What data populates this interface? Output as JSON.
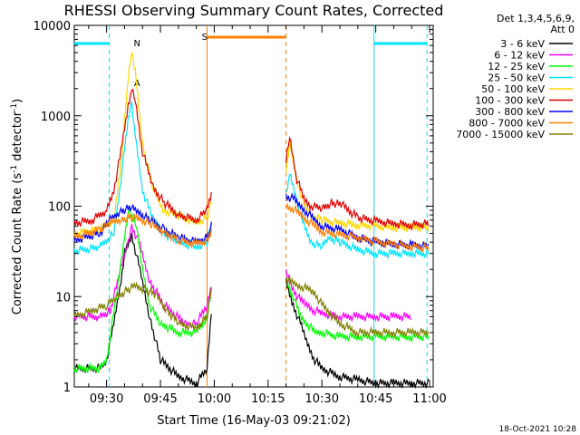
{
  "chart_data": {
    "type": "line",
    "title": "RHESSI Observing Summary Count Rates, Corrected",
    "xlabel": "Start Time (16-May-03 09:21:02)",
    "ylabel_main": "Corrected Count Rate (s",
    "ylabel_unit": "-1",
    "ylabel_mid": " detector",
    "ylabel_end": ")",
    "x_ticks": [
      "09:30",
      "09:45",
      "10:00",
      "10:15",
      "10:30",
      "10:45",
      "11:00"
    ],
    "x_tick_minutes": [
      30,
      45,
      60,
      75,
      90,
      105,
      120
    ],
    "xlim_minutes": [
      21,
      121
    ],
    "y_scale": "log",
    "ylim": [
      1,
      10000
    ],
    "y_ticks": [
      "1",
      "10",
      "100",
      "1000",
      "10000"
    ],
    "detectors": "Det 1,3,4,5,6,9,",
    "attenuator": "Att 0",
    "legend_position": "top-right",
    "footer_date": "18-Oct-2021 10:28",
    "markers": [
      {
        "label": "N",
        "color": "#00e5ff"
      },
      {
        "label": "S",
        "color": "#ff7f00"
      }
    ],
    "night_intervals": [
      {
        "start": 21,
        "end": 30.7,
        "color": "#00e5ff"
      },
      {
        "start": 104.5,
        "end": 119.3,
        "color": "#00e5ff"
      }
    ],
    "saa_interval": {
      "start": 58,
      "end": 80,
      "color": "#ff7f00"
    },
    "series": [
      {
        "name": "3 - 6 keV",
        "color": "#000000",
        "x": [
          21,
          28,
          30,
          32,
          34,
          35,
          37,
          39,
          42,
          45,
          50,
          55,
          58,
          59.5,
          80,
          82,
          84,
          86,
          88,
          90,
          95,
          100,
          105,
          110,
          115,
          120
        ],
        "y": [
          1.6,
          1.6,
          2,
          5,
          15,
          30,
          48,
          22,
          6,
          2,
          1.3,
          1.1,
          1.6,
          10,
          14,
          8,
          5,
          3,
          2,
          1.6,
          1.3,
          1.2,
          1.1,
          1.1,
          1.1,
          1.1
        ]
      },
      {
        "name": "6 - 12 keV",
        "color": "#ff00ff",
        "x": [
          21,
          28,
          31,
          34,
          37,
          39,
          42,
          46,
          52,
          55,
          58,
          59.5,
          80,
          82,
          84,
          86,
          88,
          90,
          95,
          100,
          105,
          110,
          115
        ],
        "y": [
          6,
          6,
          7,
          20,
          60,
          40,
          15,
          8,
          5,
          5,
          8,
          15,
          18,
          12,
          9,
          8,
          7,
          6.5,
          6,
          6,
          6,
          6,
          6
        ]
      },
      {
        "name": "12 - 25 keV",
        "color": "#00ff00",
        "x": [
          21,
          28,
          30,
          33,
          36,
          38,
          40,
          42,
          45,
          50,
          55,
          58,
          59.5,
          80,
          82,
          84,
          86,
          88,
          90,
          95,
          100,
          105,
          110,
          115,
          120
        ],
        "y": [
          1.6,
          1.6,
          2,
          12,
          90,
          70,
          20,
          8,
          5,
          4,
          4,
          6,
          15,
          16,
          10,
          6,
          5,
          4,
          4,
          3.6,
          3.6,
          3.6,
          3.6,
          3.6,
          3.6
        ]
      },
      {
        "name": "25 - 50 keV",
        "color": "#00e5ff",
        "x": [
          21,
          28,
          32,
          34,
          36,
          37,
          38,
          40,
          43,
          46,
          50,
          55,
          58,
          59.5,
          80,
          81,
          83,
          85,
          87,
          90,
          92,
          95,
          100,
          105,
          110,
          115,
          120
        ],
        "y": [
          32,
          35,
          50,
          200,
          900,
          1400,
          600,
          150,
          70,
          50,
          40,
          35,
          40,
          65,
          140,
          230,
          120,
          60,
          40,
          35,
          45,
          40,
          33,
          30,
          30,
          30,
          30
        ]
      },
      {
        "name": "50 - 100 keV",
        "color": "#ffd700",
        "x": [
          21,
          28,
          32,
          34,
          36,
          37,
          38,
          40,
          43,
          46,
          50,
          55,
          58,
          59.5,
          80,
          81,
          83,
          85,
          87,
          90,
          95,
          100,
          105,
          110,
          115,
          120
        ],
        "y": [
          50,
          55,
          70,
          300,
          2500,
          5500,
          3000,
          500,
          150,
          90,
          80,
          65,
          75,
          120,
          250,
          500,
          200,
          100,
          80,
          70,
          65,
          62,
          60,
          58,
          58,
          58
        ]
      },
      {
        "name": "100 - 300 keV",
        "color": "#e00000",
        "x": [
          21,
          26,
          30,
          32,
          34,
          36,
          37,
          38,
          40,
          43,
          46,
          50,
          55,
          58,
          59.5,
          80,
          81,
          83,
          85,
          87,
          90,
          93,
          96,
          100,
          105,
          110,
          115,
          120
        ],
        "y": [
          65,
          70,
          90,
          150,
          400,
          1300,
          1900,
          1500,
          400,
          160,
          110,
          80,
          70,
          90,
          150,
          300,
          600,
          200,
          120,
          100,
          95,
          110,
          100,
          75,
          68,
          64,
          62,
          64
        ]
      },
      {
        "name": "300 - 800 keV",
        "color": "#0000ff",
        "x": [
          21,
          28,
          31,
          34,
          37,
          39,
          42,
          46,
          50,
          55,
          58,
          59.5,
          80,
          82,
          84,
          86,
          88,
          90,
          95,
          100,
          105,
          110,
          115,
          120
        ],
        "y": [
          42,
          50,
          70,
          90,
          95,
          85,
          70,
          55,
          45,
          40,
          45,
          65,
          130,
          120,
          100,
          85,
          70,
          60,
          55,
          45,
          40,
          38,
          37,
          36
        ]
      },
      {
        "name": "800 - 7000 keV",
        "color": "#ff7f00",
        "x": [
          21,
          28,
          31,
          34,
          37,
          39,
          42,
          46,
          50,
          55,
          58,
          59.5,
          80,
          82,
          84,
          86,
          88,
          90,
          95,
          100,
          105,
          110,
          115,
          120
        ],
        "y": [
          45,
          55,
          65,
          72,
          75,
          72,
          65,
          52,
          42,
          38,
          42,
          60,
          100,
          95,
          80,
          70,
          60,
          52,
          48,
          45,
          40,
          38,
          36,
          34
        ]
      },
      {
        "name": "7000 - 15000 keV",
        "color": "#808000",
        "x": [
          21,
          26,
          30,
          33,
          36,
          38,
          41,
          44,
          47,
          50,
          55,
          58,
          59.5,
          80,
          82,
          84,
          86,
          88,
          90,
          95,
          100,
          105,
          110,
          115,
          120
        ],
        "y": [
          6,
          7,
          8,
          10,
          12,
          13,
          12,
          10,
          7,
          5,
          4.5,
          6,
          14,
          16,
          14,
          13,
          12,
          11,
          8,
          5,
          4,
          4,
          4,
          4,
          4
        ]
      }
    ]
  }
}
